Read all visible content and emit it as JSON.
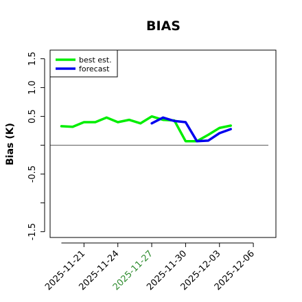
{
  "chart_data": {
    "type": "line",
    "title": "BIAS",
    "xlabel": "",
    "ylabel": "Bias (K)",
    "ylim": [
      -1.6,
      1.65
    ],
    "yticks": [
      -1.5,
      -1.0,
      -0.5,
      0.0,
      0.5,
      1.0,
      1.5
    ],
    "ytick_labels": [
      "-1.5",
      "",
      "-0.5",
      "",
      "0.5",
      "1.0",
      "1.5"
    ],
    "xlim": [
      "2025-11-18",
      "2025-12-08"
    ],
    "xticks": [
      "2025-11-21",
      "2025-11-24",
      "2025-11-27",
      "2025-11-30",
      "2025-12-03",
      "2025-12-06"
    ],
    "xtick_colors": [
      "#000000",
      "#000000",
      "#2e8b2e",
      "#000000",
      "#000000",
      "#000000"
    ],
    "reference_line": 0.0,
    "legend_position": "top-left",
    "series": [
      {
        "name": "best est.",
        "color": "#00ee00",
        "x": [
          "2025-11-19",
          "2025-11-20",
          "2025-11-21",
          "2025-11-22",
          "2025-11-23",
          "2025-11-24",
          "2025-11-25",
          "2025-11-26",
          "2025-11-27",
          "2025-11-28",
          "2025-11-29",
          "2025-11-30",
          "2025-12-01",
          "2025-12-02",
          "2025-12-03",
          "2025-12-04"
        ],
        "values": [
          0.33,
          0.32,
          0.4,
          0.4,
          0.48,
          0.4,
          0.44,
          0.38,
          0.5,
          0.44,
          0.43,
          0.07,
          0.07,
          0.18,
          0.3,
          0.34
        ]
      },
      {
        "name": "forecast",
        "color": "#0000ee",
        "x": [
          "2025-11-27",
          "2025-11-28",
          "2025-11-29",
          "2025-11-30",
          "2025-12-01",
          "2025-12-02",
          "2025-12-03",
          "2025-12-04"
        ],
        "values": [
          0.38,
          0.48,
          0.42,
          0.4,
          0.07,
          0.08,
          0.21,
          0.28
        ]
      }
    ]
  }
}
